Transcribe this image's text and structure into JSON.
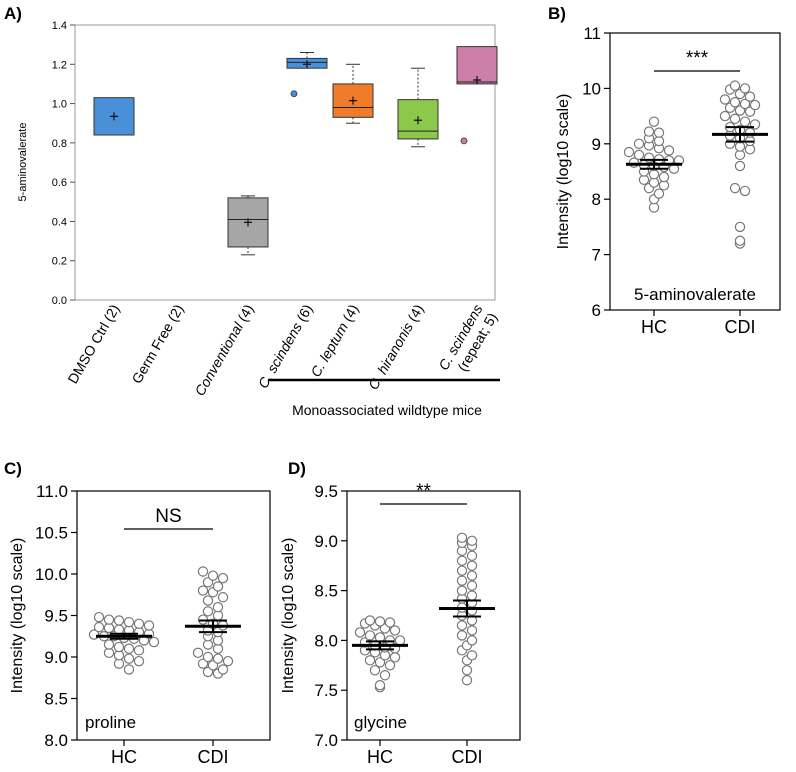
{
  "panels": {
    "a": {
      "label": "A)"
    },
    "b": {
      "label": "B)"
    },
    "c": {
      "label": "C)"
    },
    "d": {
      "label": "D)"
    }
  },
  "group_bar_label": "Monoassociated wildtype mice",
  "chart_data": [
    {
      "panel": "A",
      "type": "box",
      "ylabel": "5-aminovalerate",
      "ylim": [
        0,
        1.4
      ],
      "yticks": [
        0.0,
        0.2,
        0.4,
        0.6,
        0.8,
        1.0,
        1.2,
        1.4
      ],
      "ytick_labels": [
        "0.0",
        "0.2",
        "0.4",
        "0.6",
        "0.8",
        "1.0",
        "1.2",
        "1.4"
      ],
      "categories": [
        {
          "label": "DMSO Ctrl (2)",
          "italic": "",
          "color": "#4a90d9",
          "min": 0.84,
          "q1": 0.84,
          "median": 0.84,
          "q3": 1.03,
          "max": 1.03,
          "mean": 0.935,
          "outliers": []
        },
        {
          "label": "Germ Free (2)",
          "italic": "",
          "color": "#ffffff",
          "min": null,
          "q1": null,
          "median": null,
          "q3": null,
          "max": null,
          "mean": null,
          "outliers": []
        },
        {
          "label": " (4)",
          "italic": "Conventional",
          "color": "#a6a6a6",
          "min": 0.23,
          "q1": 0.27,
          "median": 0.41,
          "q3": 0.52,
          "max": 0.53,
          "mean": 0.395,
          "outliers": []
        },
        {
          "label": " (6)",
          "italic": "C. scindens",
          "color": "#4a90d9",
          "min": 1.18,
          "q1": 1.18,
          "median": 1.21,
          "q3": 1.23,
          "max": 1.26,
          "mean": 1.2,
          "outliers": [
            1.05
          ]
        },
        {
          "label": " (4)",
          "italic": "C. leptum",
          "color": "#f07b2a",
          "min": 0.9,
          "q1": 0.93,
          "median": 0.98,
          "q3": 1.1,
          "max": 1.2,
          "mean": 1.015,
          "outliers": []
        },
        {
          "label": " (4)",
          "italic": "C. hiranonis",
          "color": "#8cc84b",
          "min": 0.78,
          "q1": 0.82,
          "median": 0.86,
          "q3": 1.02,
          "max": 1.18,
          "mean": 0.915,
          "outliers": []
        },
        {
          "label": "(repeat; 5)",
          "italic": "C. scindens",
          "color": "#cc7fa8",
          "min": 1.1,
          "q1": 1.1,
          "median": 1.11,
          "q3": 1.29,
          "max": 1.29,
          "mean": 1.12,
          "outliers": [
            0.81
          ]
        }
      ]
    },
    {
      "panel": "B",
      "type": "scatter",
      "ylabel": "Intensity (log10 scale)",
      "annotation": "5-aminovalerate",
      "significance": "***",
      "ylim": [
        6,
        11
      ],
      "yticks": [
        6,
        7,
        8,
        9,
        10,
        11
      ],
      "ytick_labels": [
        "6",
        "7",
        "8",
        "9",
        "10",
        "11"
      ],
      "categories": [
        "HC",
        "CDI"
      ],
      "series": [
        {
          "name": "HC",
          "mean": 8.63,
          "sem": 0.08,
          "values": [
            9.4,
            9.22,
            9.2,
            9.1,
            9.05,
            9.0,
            8.97,
            8.92,
            8.88,
            8.85,
            8.8,
            8.75,
            8.72,
            8.7,
            8.7,
            8.66,
            8.62,
            8.6,
            8.58,
            8.55,
            8.5,
            8.45,
            8.4,
            8.35,
            8.3,
            8.25,
            8.2,
            8.1,
            8.0,
            7.85
          ]
        },
        {
          "name": "CDI",
          "mean": 9.17,
          "sem": 0.13,
          "values": [
            10.05,
            10.0,
            9.98,
            9.9,
            9.85,
            9.8,
            9.75,
            9.72,
            9.7,
            9.65,
            9.6,
            9.58,
            9.5,
            9.45,
            9.4,
            9.35,
            9.3,
            9.25,
            9.2,
            9.15,
            9.1,
            9.05,
            9.0,
            8.95,
            8.9,
            8.8,
            8.6,
            8.2,
            8.15,
            7.5,
            7.25,
            7.2
          ]
        }
      ]
    },
    {
      "panel": "C",
      "type": "scatter",
      "ylabel": "Intensity (log10 scale)",
      "annotation": "proline",
      "significance": "NS",
      "ylim": [
        8.0,
        11.0
      ],
      "yticks": [
        8.0,
        8.5,
        9.0,
        9.5,
        10.0,
        10.5,
        11.0
      ],
      "ytick_labels": [
        "8.0",
        "8.5",
        "9.0",
        "9.5",
        "10.0",
        "10.5",
        "11.0"
      ],
      "categories": [
        "HC",
        "CDI"
      ],
      "series": [
        {
          "name": "HC",
          "mean": 9.25,
          "sem": 0.03,
          "values": [
            9.48,
            9.45,
            9.44,
            9.42,
            9.4,
            9.38,
            9.36,
            9.35,
            9.33,
            9.32,
            9.3,
            9.28,
            9.27,
            9.25,
            9.25,
            9.23,
            9.22,
            9.2,
            9.18,
            9.15,
            9.12,
            9.1,
            9.08,
            9.05,
            9.02,
            8.98,
            8.95,
            8.92,
            8.85
          ]
        },
        {
          "name": "CDI",
          "mean": 9.37,
          "sem": 0.07,
          "values": [
            10.03,
            9.98,
            9.95,
            9.9,
            9.85,
            9.8,
            9.78,
            9.72,
            9.68,
            9.6,
            9.55,
            9.5,
            9.45,
            9.4,
            9.38,
            9.32,
            9.3,
            9.25,
            9.2,
            9.15,
            9.1,
            9.05,
            9.0,
            8.98,
            8.95,
            8.92,
            8.9,
            8.85,
            8.82,
            8.8
          ]
        }
      ]
    },
    {
      "panel": "D",
      "type": "scatter",
      "ylabel": "Intensity (log10 scale)",
      "annotation": "glycine",
      "significance": "**",
      "ylim": [
        7.0,
        9.5
      ],
      "yticks": [
        7.0,
        7.5,
        8.0,
        8.5,
        9.0,
        9.5
      ],
      "ytick_labels": [
        "7.0",
        "7.5",
        "8.0",
        "8.5",
        "9.0",
        "9.5"
      ],
      "categories": [
        "HC",
        "CDI"
      ],
      "series": [
        {
          "name": "HC",
          "mean": 7.95,
          "sem": 0.04,
          "values": [
            8.2,
            8.19,
            8.18,
            8.17,
            8.15,
            8.12,
            8.1,
            8.08,
            8.05,
            8.03,
            8.0,
            8.0,
            7.98,
            7.95,
            7.93,
            7.92,
            7.9,
            7.88,
            7.85,
            7.83,
            7.8,
            7.78,
            7.75,
            7.7,
            7.65,
            7.55,
            7.53
          ]
        },
        {
          "name": "CDI",
          "mean": 8.32,
          "sem": 0.08,
          "values": [
            9.03,
            9.0,
            8.98,
            8.95,
            8.9,
            8.85,
            8.8,
            8.75,
            8.7,
            8.65,
            8.6,
            8.55,
            8.5,
            8.45,
            8.42,
            8.38,
            8.33,
            8.3,
            8.25,
            8.2,
            8.15,
            8.1,
            8.05,
            8.0,
            7.95,
            7.9,
            7.85,
            7.8,
            7.7,
            7.6
          ]
        }
      ]
    }
  ]
}
